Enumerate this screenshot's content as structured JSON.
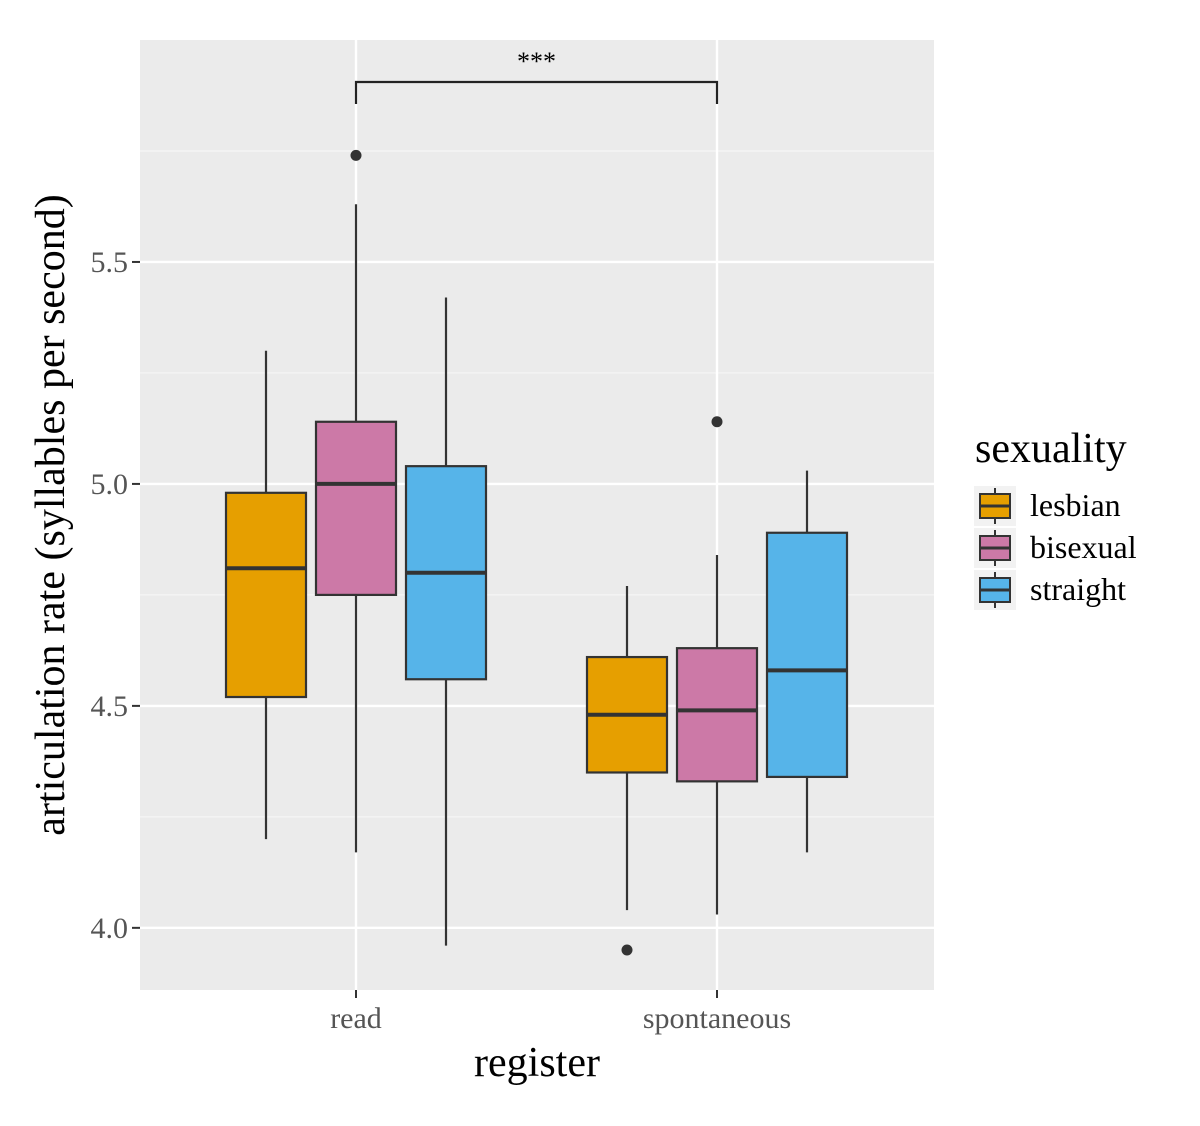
{
  "chart_data": {
    "type": "box",
    "xlabel": "register",
    "ylabel": "articulation rate (syllables per second)",
    "ylim": [
      3.86,
      6.0
    ],
    "yticks": [
      4.0,
      4.5,
      5.0,
      5.5
    ],
    "ytick_labels": [
      "4.0",
      "4.5",
      "5.0",
      "5.5"
    ],
    "categories": [
      "read",
      "spontaneous"
    ],
    "grid": true,
    "legend": {
      "title": "sexuality",
      "position": "right"
    },
    "series": [
      {
        "name": "lesbian",
        "color": "#E69F00",
        "boxes": [
          {
            "category": "read",
            "whisker_low": 4.2,
            "q1": 4.52,
            "median": 4.81,
            "q3": 4.98,
            "whisker_high": 5.3,
            "outliers": []
          },
          {
            "category": "spontaneous",
            "whisker_low": 4.04,
            "q1": 4.35,
            "median": 4.48,
            "q3": 4.61,
            "whisker_high": 4.77,
            "outliers": [
              3.95
            ]
          }
        ]
      },
      {
        "name": "bisexual",
        "color": "#CC79A7",
        "boxes": [
          {
            "category": "read",
            "whisker_low": 4.17,
            "q1": 4.75,
            "median": 5.0,
            "q3": 5.14,
            "whisker_high": 5.63,
            "outliers": [
              5.74
            ]
          },
          {
            "category": "spontaneous",
            "whisker_low": 4.03,
            "q1": 4.33,
            "median": 4.49,
            "q3": 4.63,
            "whisker_high": 4.84,
            "outliers": [
              5.14
            ]
          }
        ]
      },
      {
        "name": "straight",
        "color": "#56B4E9",
        "boxes": [
          {
            "category": "read",
            "whisker_low": 3.96,
            "q1": 4.56,
            "median": 4.8,
            "q3": 5.04,
            "whisker_high": 5.42,
            "outliers": []
          },
          {
            "category": "spontaneous",
            "whisker_low": 4.17,
            "q1": 4.34,
            "median": 4.58,
            "q3": 4.89,
            "whisker_high": 5.03,
            "outliers": []
          }
        ]
      }
    ],
    "annotations": [
      {
        "type": "significance-bracket",
        "from": "read",
        "to": "spontaneous",
        "label": "***"
      }
    ]
  },
  "colors": {
    "panel_background": "#EBEBEB",
    "major_grid": "#FFFFFF",
    "box_outline": "#333333"
  }
}
